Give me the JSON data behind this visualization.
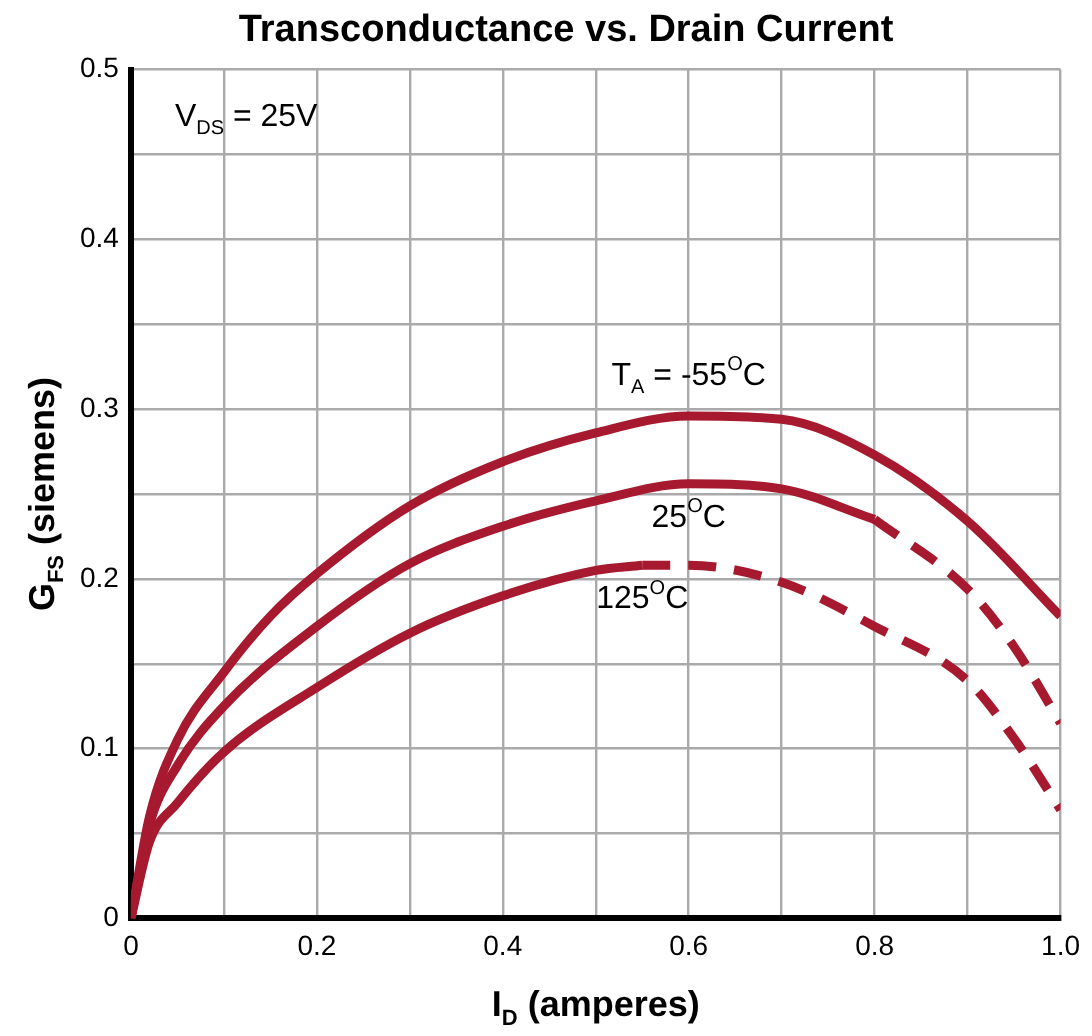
{
  "chart_data": {
    "type": "line",
    "title": "Transconductance vs. Drain Current",
    "xlabel": "I$_{D}$ (amperes)",
    "ylabel": "G$_{FS}$ (siemens)",
    "annotations": [
      "V$_{DS}$ = 25V"
    ],
    "xlim": [
      0,
      1
    ],
    "ylim": [
      0,
      0.5
    ],
    "xticks": [
      0,
      {
        "value": 0.1,
        "label": null
      },
      0.2,
      {
        "value": 0.3,
        "label": null
      },
      0.4,
      {
        "value": 0.5,
        "label": null
      },
      0.6,
      {
        "value": 0.7,
        "label": null
      },
      0.8,
      {
        "value": 0.9,
        "label": null
      },
      {
        "value": 1,
        "label": "1.0"
      }
    ],
    "yticks": [
      0,
      {
        "value": 0.05,
        "label": null
      },
      0.1,
      {
        "value": 0.15,
        "label": null
      },
      0.2,
      {
        "value": 0.25,
        "label": null
      },
      0.3,
      {
        "value": 0.35,
        "label": null
      },
      0.4,
      {
        "value": 0.45,
        "label": null
      },
      0.5
    ],
    "grid": true,
    "legend": false,
    "marker": "none",
    "series": [
      {
        "name": "T$_{A}$ = -55$^{O}$C",
        "color": "#a6192e",
        "line_style": "solid",
        "x": [
          0,
          0.02,
          0.05,
          0.1,
          0.15,
          0.2,
          0.3,
          0.4,
          0.5,
          0.6,
          0.7,
          0.8,
          0.9,
          1
        ],
        "values": [
          0,
          0.06,
          0.105,
          0.145,
          0.178,
          0.203,
          0.243,
          0.269,
          0.286,
          0.296,
          0.294,
          0.273,
          0.234,
          0.178
        ]
      },
      {
        "name": "25$^{O}$C",
        "color": "#a6192e",
        "line_style": "solid",
        "x": [
          0,
          0.02,
          0.05,
          0.1,
          0.2,
          0.3,
          0.4,
          0.5,
          0.6,
          0.7,
          0.8
        ],
        "values": [
          0,
          0.055,
          0.09,
          0.125,
          0.172,
          0.209,
          0.231,
          0.246,
          0.256,
          0.253,
          0.235
        ]
      },
      {
        "color": "#a6192e",
        "line_style": "dashed",
        "x": [
          0.8,
          0.9,
          0.95,
          1
        ],
        "values": [
          0.235,
          0.194,
          0.16,
          0.115
        ]
      },
      {
        "name": "125$^{O}$C",
        "color": "#a6192e",
        "line_style": "solid",
        "x": [
          0,
          0.02,
          0.05,
          0.1,
          0.2,
          0.3,
          0.4,
          0.5,
          0.55
        ],
        "values": [
          0,
          0.045,
          0.068,
          0.098,
          0.136,
          0.168,
          0.19,
          0.205,
          0.208
        ]
      },
      {
        "color": "#a6192e",
        "line_style": "dashed",
        "x": [
          0.55,
          0.6,
          0.7,
          0.8,
          0.9,
          0.95,
          1
        ],
        "values": [
          0.208,
          0.208,
          0.198,
          0.172,
          0.14,
          0.106,
          0.064
        ]
      }
    ]
  }
}
